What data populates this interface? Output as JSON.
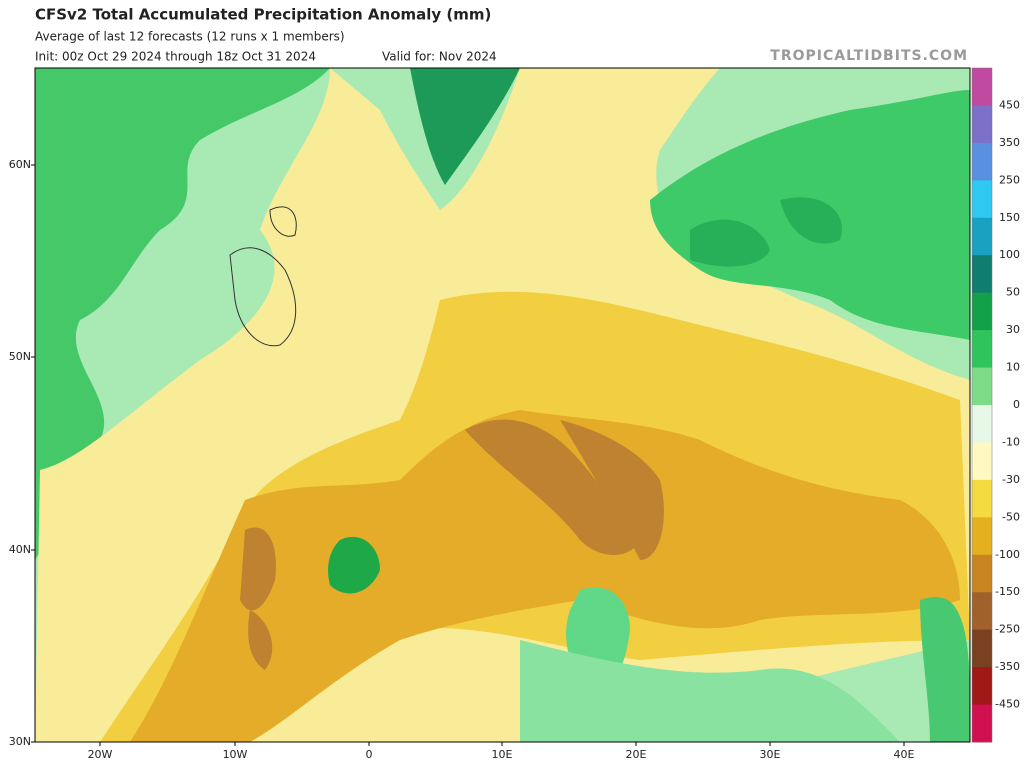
{
  "header": {
    "title": "CFSv2 Total Accumulated Precipitation Anomaly (mm)",
    "subtitle": "Average of last 12 forecasts (12 runs x 1 members)",
    "init": "Init: 00z Oct 29 2024 through 18z Oct 31 2024",
    "valid": "Valid for: Nov 2024",
    "watermark": "TROPICALTIDBITS.COM"
  },
  "map": {
    "lat_labels": [
      "60N",
      "50N",
      "40N",
      "30N"
    ],
    "lon_labels": [
      "20W",
      "10W",
      "0",
      "10E",
      "20E",
      "30E",
      "40E"
    ]
  },
  "colorbar": {
    "labels": [
      "450",
      "350",
      "250",
      "150",
      "100",
      "50",
      "30",
      "10",
      "0",
      "-10",
      "-30",
      "-50",
      "-100",
      "-150",
      "-250",
      "-350",
      "-450"
    ],
    "colors": [
      "#c04aa0",
      "#7d70c8",
      "#5a90e0",
      "#2ec8f0",
      "#1aa0c0",
      "#0f7e70",
      "#12a048",
      "#2fc45c",
      "#7edc88",
      "#e8f8e8",
      "#fff8c0",
      "#f4dc40",
      "#e4b020",
      "#c88420",
      "#a0622a",
      "#7a4022",
      "#a01818",
      "#d01050"
    ]
  }
}
